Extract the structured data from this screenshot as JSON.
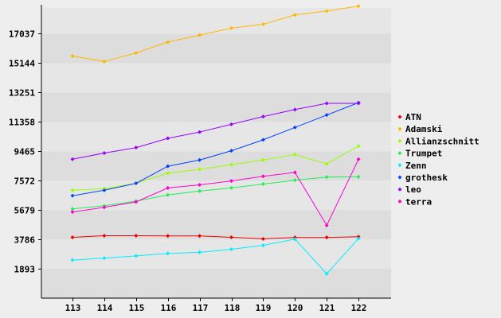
{
  "chart_data": {
    "type": "line",
    "title": "",
    "xlabel": "",
    "ylabel": "",
    "x": [
      "113",
      "114",
      "115",
      "116",
      "117",
      "118",
      "119",
      "120",
      "121",
      "122"
    ],
    "yticks": [
      1893,
      3786,
      5679,
      7572,
      9465,
      11358,
      13251,
      15144,
      17037
    ],
    "ytick_labels": [
      "1893",
      "3786",
      "5679",
      "7572",
      "9465",
      "11358",
      "13251",
      "15144",
      "17037"
    ],
    "ylim": [
      0,
      18700
    ],
    "grid": "horizontal alternating bands",
    "legend_position": "right",
    "series": [
      {
        "name": "ATN",
        "color": "#ee0000",
        "values": [
          3920,
          4020,
          4020,
          4010,
          4010,
          3920,
          3820,
          3910,
          3910,
          3960
        ]
      },
      {
        "name": "Adamski",
        "color": "#ffb800",
        "values": [
          15600,
          15250,
          15800,
          16500,
          16950,
          17400,
          17650,
          18250,
          18500,
          18820
        ]
      },
      {
        "name": "Allianzschnitt",
        "color": "#99ff00",
        "values": [
          6950,
          7050,
          7400,
          8050,
          8300,
          8600,
          8900,
          9250,
          8650,
          9800
        ]
      },
      {
        "name": "Trumpet",
        "color": "#22ee55",
        "values": [
          5750,
          5950,
          6250,
          6650,
          6900,
          7100,
          7350,
          7600,
          7800,
          7820
        ]
      },
      {
        "name": "Zenn",
        "color": "#00eeff",
        "values": [
          2450,
          2580,
          2720,
          2880,
          2950,
          3150,
          3400,
          3800,
          1570,
          3840
        ]
      },
      {
        "name": "grothesk",
        "color": "#0044ff",
        "values": [
          6600,
          6950,
          7400,
          8500,
          8900,
          9500,
          10200,
          11000,
          11800,
          12600
        ]
      },
      {
        "name": "leo",
        "color": "#9900ff",
        "values": [
          8950,
          9350,
          9700,
          10300,
          10700,
          11200,
          11700,
          12150,
          12550,
          12550
        ]
      },
      {
        "name": "terra",
        "color": "#ff00cc",
        "values": [
          5550,
          5850,
          6200,
          7100,
          7300,
          7550,
          7850,
          8100,
          4690,
          8950
        ]
      }
    ],
    "colors": {
      "background": "#eeeeee",
      "band_dark": "#dddddd",
      "band_light": "#e6e6e6",
      "axis": "#000000"
    }
  }
}
